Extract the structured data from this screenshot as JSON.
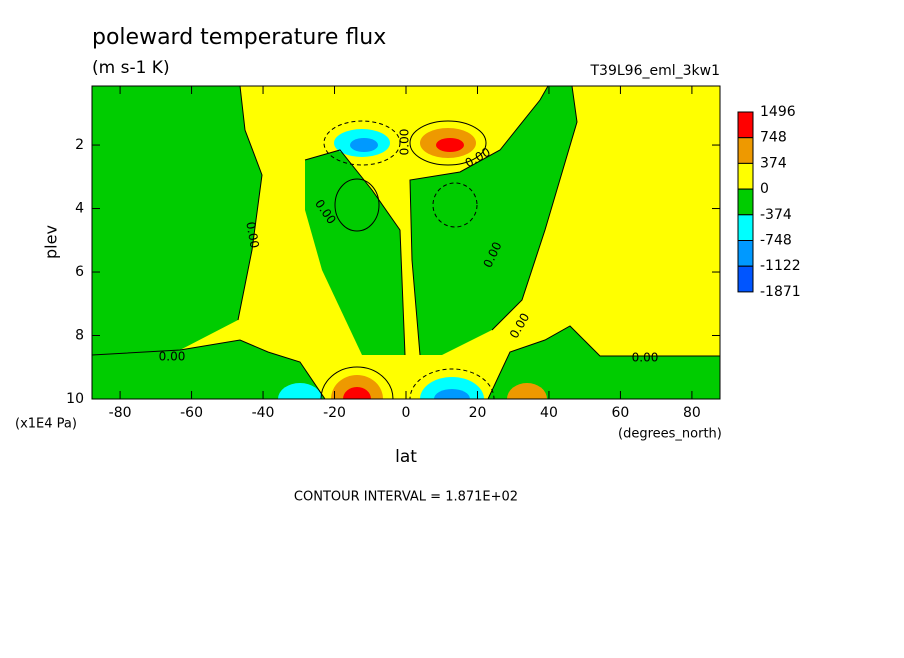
{
  "chart_data": {
    "type": "contour",
    "title": "poleward temperature flux",
    "subtitle": "(m s-1 K)",
    "dataset_label": "T39L96_eml_3kw1",
    "x_label": "lat",
    "x_units": "(degrees_north)",
    "y_label": "plev",
    "y_units": "(x1E4 Pa)",
    "xlim": [
      -87.86,
      87.86
    ],
    "xticks": [
      -80,
      -60,
      -40,
      -20,
      0,
      20,
      40,
      60,
      80
    ],
    "ylim": [
      10,
      0.14
    ],
    "yticks": [
      2,
      4,
      6,
      8,
      10
    ],
    "colorbar": {
      "levels": [
        1496,
        748,
        374,
        0,
        -374,
        -748,
        -1122,
        -1871
      ],
      "colors": [
        "#ff0000",
        "#ee9900",
        "#ffff00",
        "#00cc00",
        "#00ffff",
        "#0099ff",
        "#0055ff"
      ]
    },
    "contour_label": "0.00",
    "footnote": "CONTOUR INTERVAL = 1.871E+02"
  }
}
